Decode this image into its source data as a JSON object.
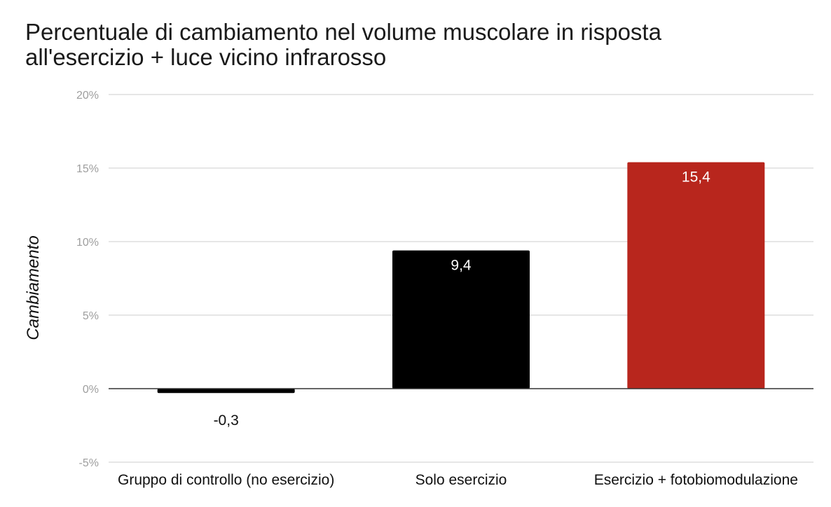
{
  "chart_data": {
    "type": "bar",
    "title": "Percentuale di cambiamento nel volume muscolare in risposta\nall'esercizio + luce vicino infrarosso",
    "xlabel": "",
    "ylabel": "Cambiamento",
    "categories": [
      "Gruppo di controllo (no esercizio)",
      "Solo esercizio",
      "Esercizio + fotobiomodulazione"
    ],
    "values": [
      -0.3,
      9.4,
      15.4
    ],
    "data_labels": [
      "-0,3",
      "9,4",
      "15,4"
    ],
    "bar_colors": [
      "#000000",
      "#000000",
      "#b8261d"
    ],
    "ylim": [
      -5,
      20
    ],
    "yticks": [
      -5,
      0,
      5,
      10,
      15,
      20
    ],
    "ytick_labels": [
      "-5%",
      "0%",
      "5%",
      "10%",
      "15%",
      "20%"
    ],
    "grid": true,
    "legend": "none"
  }
}
